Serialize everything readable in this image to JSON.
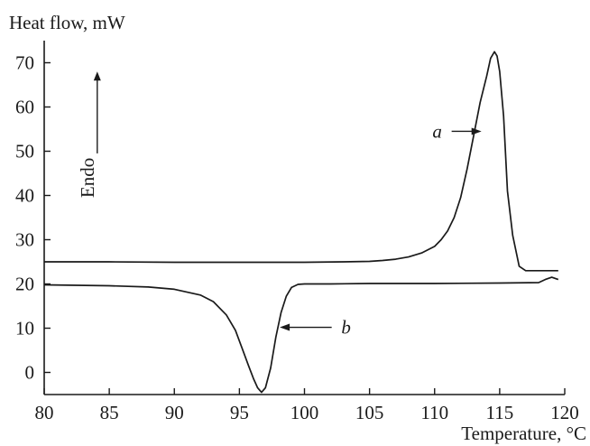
{
  "chart_data": {
    "type": "line",
    "ylabel": "Heat flow, mW",
    "xlabel": "Temperature, °C",
    "xlim": [
      80,
      120
    ],
    "ylim": [
      -5,
      75
    ],
    "x_ticks": [
      80,
      85,
      90,
      95,
      100,
      105,
      110,
      115,
      120
    ],
    "y_ticks": [
      0,
      10,
      20,
      30,
      40,
      50,
      60,
      70
    ],
    "grid": false,
    "line_color": "#1a1a1a",
    "series": [
      {
        "label": "a",
        "x": [
          80,
          85,
          90,
          95,
          100,
          103,
          105,
          106,
          107,
          108,
          109,
          110,
          110.5,
          111,
          111.5,
          112,
          112.5,
          113,
          113.5,
          114,
          114.3,
          114.6,
          114.8,
          115,
          115.3,
          115.6,
          116,
          116.5,
          117,
          118,
          119.5
        ],
        "y": [
          25,
          25,
          24.9,
          24.9,
          24.9,
          25,
          25.1,
          25.3,
          25.6,
          26.1,
          27,
          28.5,
          30,
          32,
          35,
          39.5,
          46,
          53.5,
          61,
          67,
          71,
          72.5,
          71.5,
          68,
          58,
          41,
          31,
          24,
          23,
          23,
          23
        ]
      },
      {
        "label": "b",
        "x": [
          80,
          85,
          88,
          90,
          92,
          93,
          94,
          94.7,
          95.2,
          95.7,
          96.1,
          96.4,
          96.7,
          97,
          97.4,
          97.8,
          98.2,
          98.6,
          99,
          99.5,
          100,
          102,
          105,
          110,
          115,
          118,
          118.5,
          119,
          119.5
        ],
        "y": [
          19.8,
          19.6,
          19.3,
          18.8,
          17.5,
          16,
          13,
          9.5,
          5.5,
          1.5,
          -1.5,
          -3.5,
          -4.5,
          -3.5,
          1,
          8,
          13.5,
          17.2,
          19.2,
          19.9,
          20,
          20,
          20.1,
          20.1,
          20.2,
          20.3,
          21,
          21.5,
          21
        ]
      }
    ],
    "annotations": [
      {
        "text": "a",
        "x": 110.2,
        "y": 54.5,
        "arrow_to_x": 113.6
      },
      {
        "text": "b",
        "x": 103.2,
        "y": 10.2,
        "arrow_to_x": 98.1
      },
      {
        "text": "Endo",
        "x": 83.8,
        "y": 44,
        "arrow_up_to_y": 68
      }
    ]
  }
}
